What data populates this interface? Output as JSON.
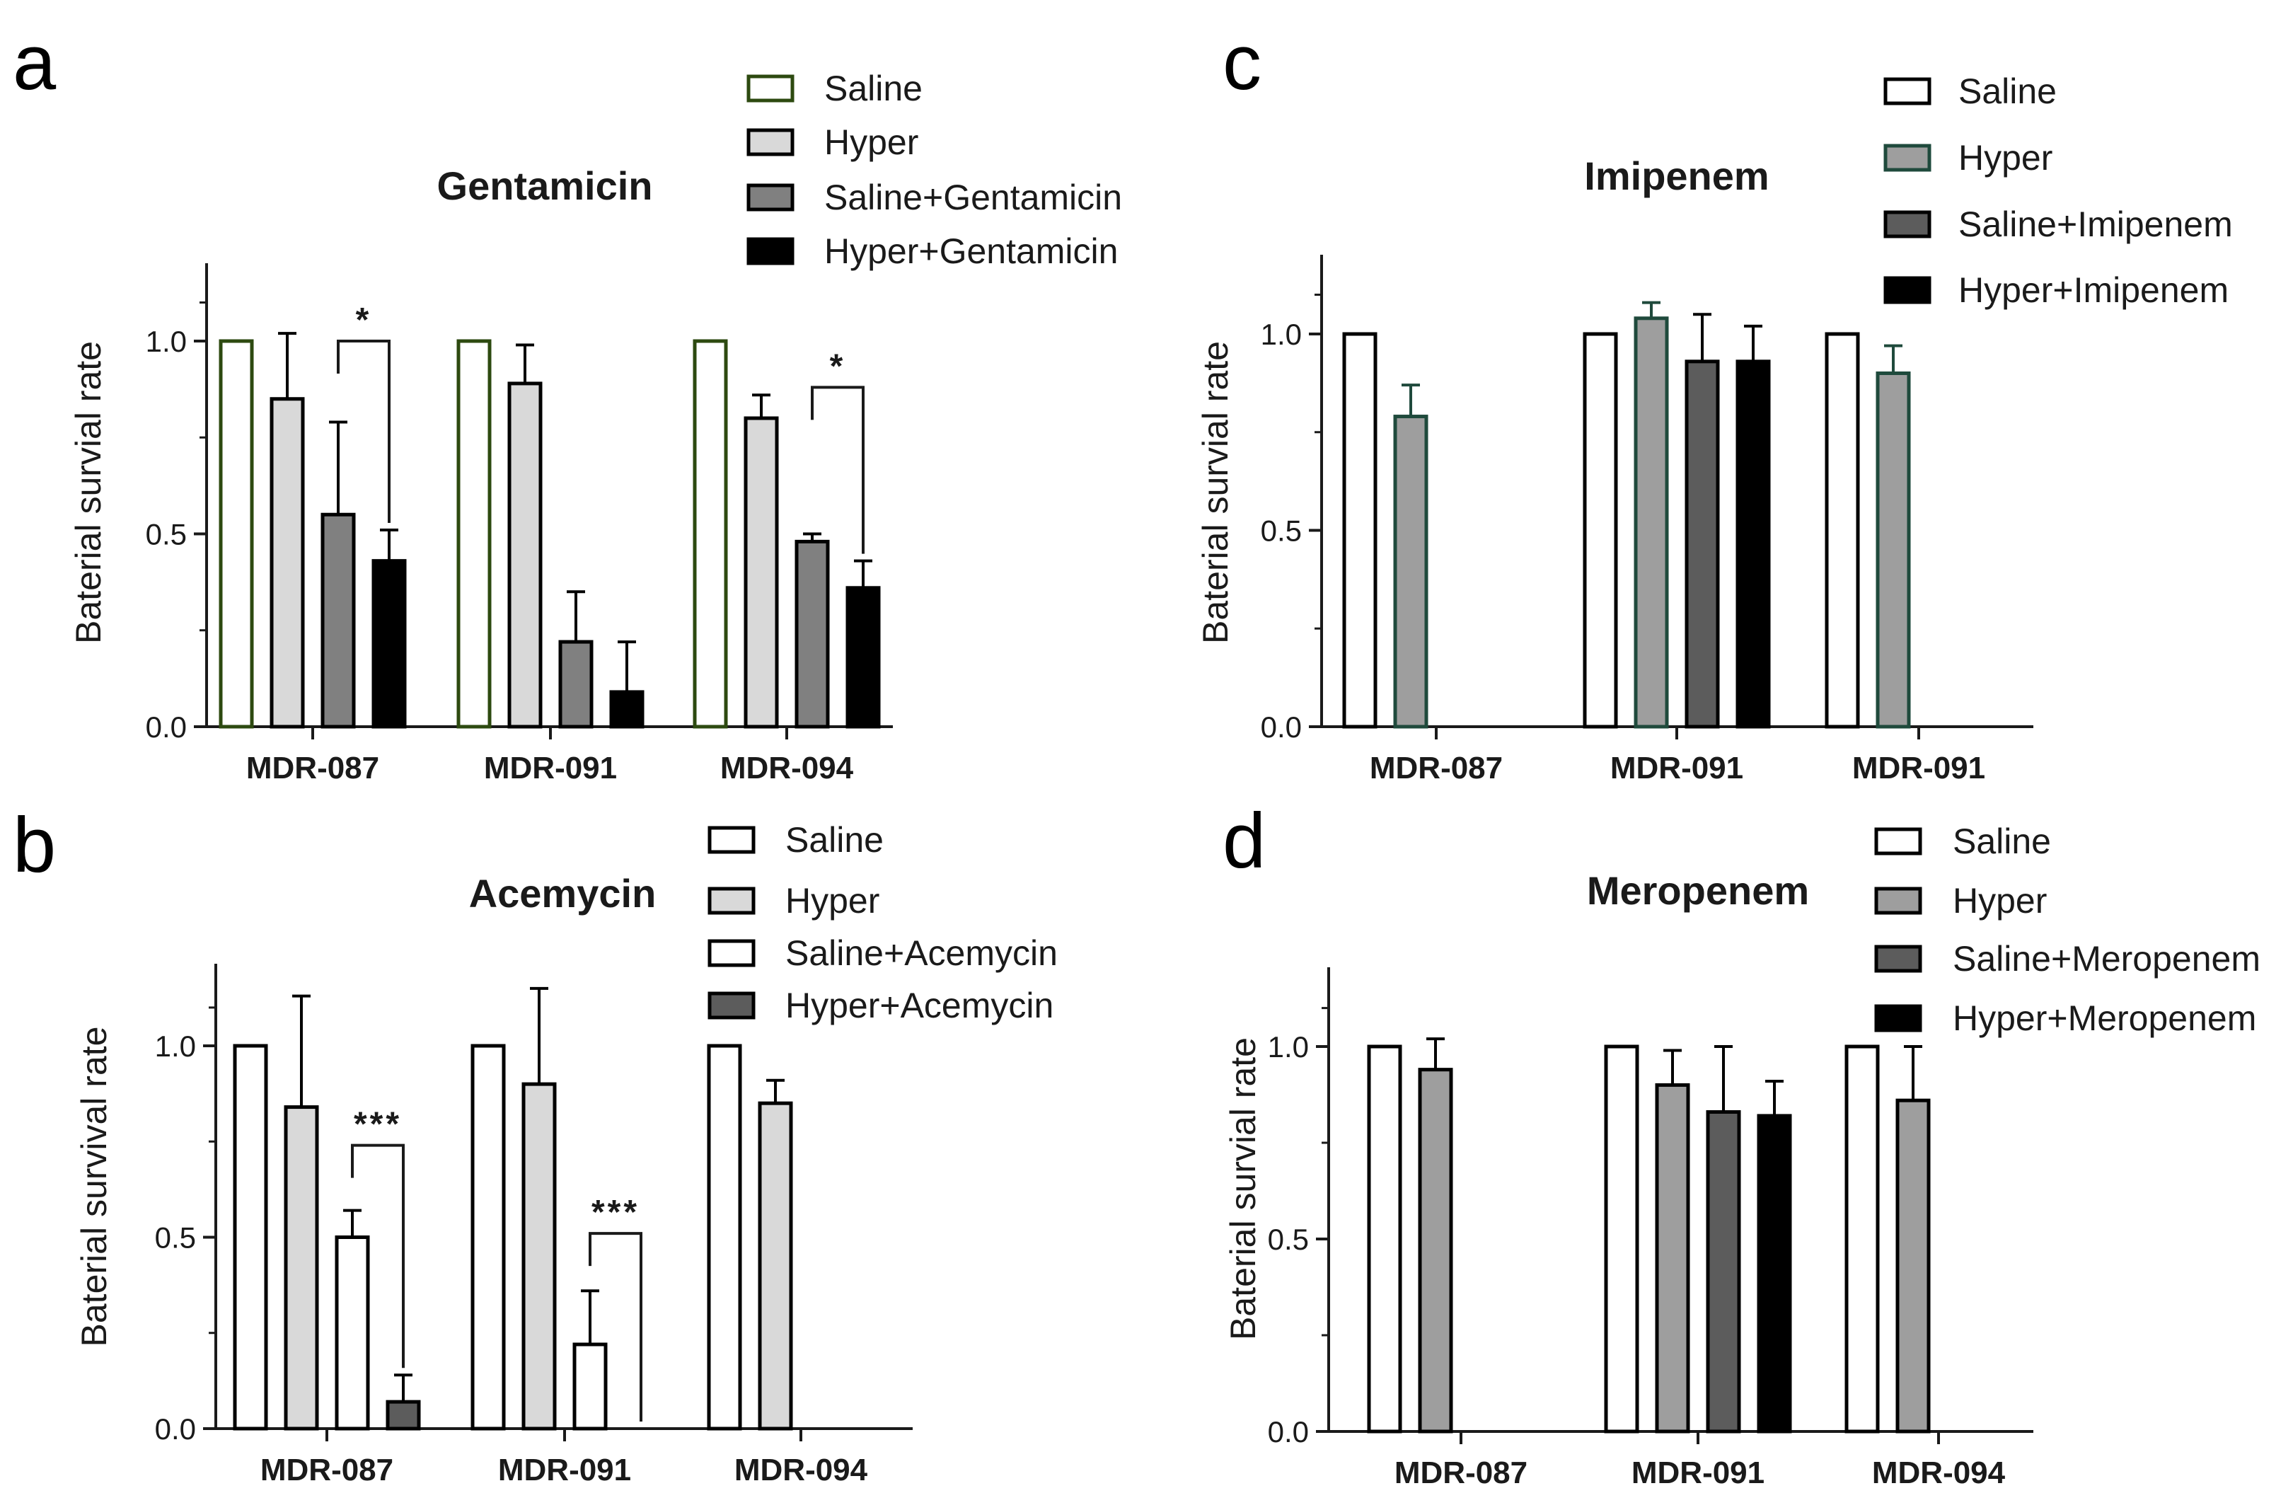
{
  "figure": {
    "panels": [
      "a",
      "b",
      "c",
      "d"
    ]
  },
  "colors": {
    "white": "#ffffff",
    "light_gray": "#d9d9d9",
    "mid_gray": "#9e9e9e",
    "gray": "#808080",
    "dark_gray": "#5c5c5c",
    "black": "#000000",
    "outline_green": "#2d4a10",
    "outline_teal": "#1f4a3c",
    "outline": "#000000"
  },
  "chart_data": [
    {
      "type": "bar",
      "panel": "a",
      "title": "Gentamicin",
      "xlabel": "",
      "ylabel": "Baterial survial rate",
      "ylim": [
        0,
        1.2
      ],
      "yticks": [
        "0.0",
        "0.5",
        "1.0"
      ],
      "categories": [
        "MDR-087",
        "MDR-091",
        "MDR-094"
      ],
      "series": [
        {
          "name": "Saline",
          "values": [
            1.0,
            1.0,
            1.0
          ],
          "errors": [
            0,
            0,
            0
          ],
          "fill": "#ffffff",
          "stroke": "#2d4a10"
        },
        {
          "name": "Hyper",
          "values": [
            0.85,
            0.89,
            0.8
          ],
          "errors": [
            0.17,
            0.1,
            0.06
          ],
          "fill": "#d9d9d9",
          "stroke": "#000000"
        },
        {
          "name": "Saline+Gentamicin",
          "values": [
            0.55,
            0.22,
            0.48
          ],
          "errors": [
            0.24,
            0.13,
            0.02
          ],
          "fill": "#808080",
          "stroke": "#000000"
        },
        {
          "name": "Hyper+Gentamicin",
          "values": [
            0.43,
            0.09,
            0.36
          ],
          "errors": [
            0.08,
            0.13,
            0.07
          ],
          "fill": "#000000",
          "stroke": "#000000"
        }
      ],
      "significance": [
        {
          "category": 0,
          "from": 2,
          "to": 3,
          "label": "*",
          "y": 1.0
        },
        {
          "category": 2,
          "from": 2,
          "to": 3,
          "label": "*",
          "y": 0.88
        }
      ]
    },
    {
      "type": "bar",
      "panel": "b",
      "title": "Acemycin",
      "xlabel": "",
      "ylabel": "Baterial survival rate",
      "ylim": [
        0,
        1.2
      ],
      "yticks": [
        "0.0",
        "0.5",
        "1.0"
      ],
      "categories": [
        "MDR-087",
        "MDR-091",
        "MDR-094"
      ],
      "series": [
        {
          "name": "Saline",
          "values": [
            1.0,
            1.0,
            1.0
          ],
          "errors": [
            0,
            0,
            0
          ],
          "fill": "#ffffff",
          "stroke": "#000000"
        },
        {
          "name": "Hyper",
          "values": [
            0.84,
            0.9,
            0.85
          ],
          "errors": [
            0.29,
            0.25,
            0.06
          ],
          "fill": "#d9d9d9",
          "stroke": "#000000"
        },
        {
          "name": "Saline+Acemycin",
          "values": [
            0.5,
            0.22,
            null
          ],
          "errors": [
            0.07,
            0.14,
            0
          ],
          "fill": "#ffffff",
          "stroke": "#000000"
        },
        {
          "name": "Hyper+Acemycin",
          "values": [
            0.07,
            0.0,
            null
          ],
          "errors": [
            0.07,
            0,
            0
          ],
          "fill": "#5c5c5c",
          "stroke": "#000000"
        }
      ],
      "significance": [
        {
          "category": 0,
          "from": 2,
          "to": 3,
          "label": "***",
          "y": 0.74
        },
        {
          "category": 1,
          "from": 2,
          "to": 3,
          "label": "***",
          "y": 0.51
        }
      ]
    },
    {
      "type": "bar",
      "panel": "c",
      "title": "Imipenem",
      "xlabel": "",
      "ylabel": "Baterial survial rate",
      "ylim": [
        0,
        1.2
      ],
      "yticks": [
        "0.0",
        "0.5",
        "1.0"
      ],
      "categories": [
        "MDR-087",
        "MDR-091",
        "MDR-091"
      ],
      "series": [
        {
          "name": "Saline",
          "values": [
            1.0,
            1.0,
            1.0
          ],
          "errors": [
            0,
            0,
            0
          ],
          "fill": "#ffffff",
          "stroke": "#000000"
        },
        {
          "name": "Hyper",
          "values": [
            0.79,
            1.04,
            0.9
          ],
          "errors": [
            0.08,
            0.04,
            0.07
          ],
          "fill": "#9e9e9e",
          "stroke": "#1f4a3c"
        },
        {
          "name": "Saline+Imipenem",
          "values": [
            null,
            0.93,
            null
          ],
          "errors": [
            0,
            0.12,
            0
          ],
          "fill": "#5c5c5c",
          "stroke": "#000000"
        },
        {
          "name": "Hyper+Imipenem",
          "values": [
            null,
            0.93,
            null
          ],
          "errors": [
            0,
            0.09,
            0
          ],
          "fill": "#000000",
          "stroke": "#000000"
        }
      ],
      "significance": []
    },
    {
      "type": "bar",
      "panel": "d",
      "title": "Meropenem",
      "xlabel": "",
      "ylabel": "Baterial survial rate",
      "ylim": [
        0,
        1.2
      ],
      "yticks": [
        "0.0",
        "0.5",
        "1.0"
      ],
      "categories": [
        "MDR-087",
        "MDR-091",
        "MDR-094"
      ],
      "series": [
        {
          "name": "Saline",
          "values": [
            1.0,
            1.0,
            1.0
          ],
          "errors": [
            0,
            0,
            0
          ],
          "fill": "#ffffff",
          "stroke": "#000000"
        },
        {
          "name": "Hyper",
          "values": [
            0.94,
            0.9,
            0.86
          ],
          "errors": [
            0.08,
            0.09,
            0.14
          ],
          "fill": "#9e9e9e",
          "stroke": "#000000"
        },
        {
          "name": "Saline+Meropenem",
          "values": [
            null,
            0.83,
            null
          ],
          "errors": [
            0,
            0.17,
            0
          ],
          "fill": "#5c5c5c",
          "stroke": "#000000"
        },
        {
          "name": "Hyper+Meropenem",
          "values": [
            null,
            0.82,
            null
          ],
          "errors": [
            0,
            0.09,
            0
          ],
          "fill": "#000000",
          "stroke": "#000000"
        }
      ],
      "significance": []
    }
  ]
}
